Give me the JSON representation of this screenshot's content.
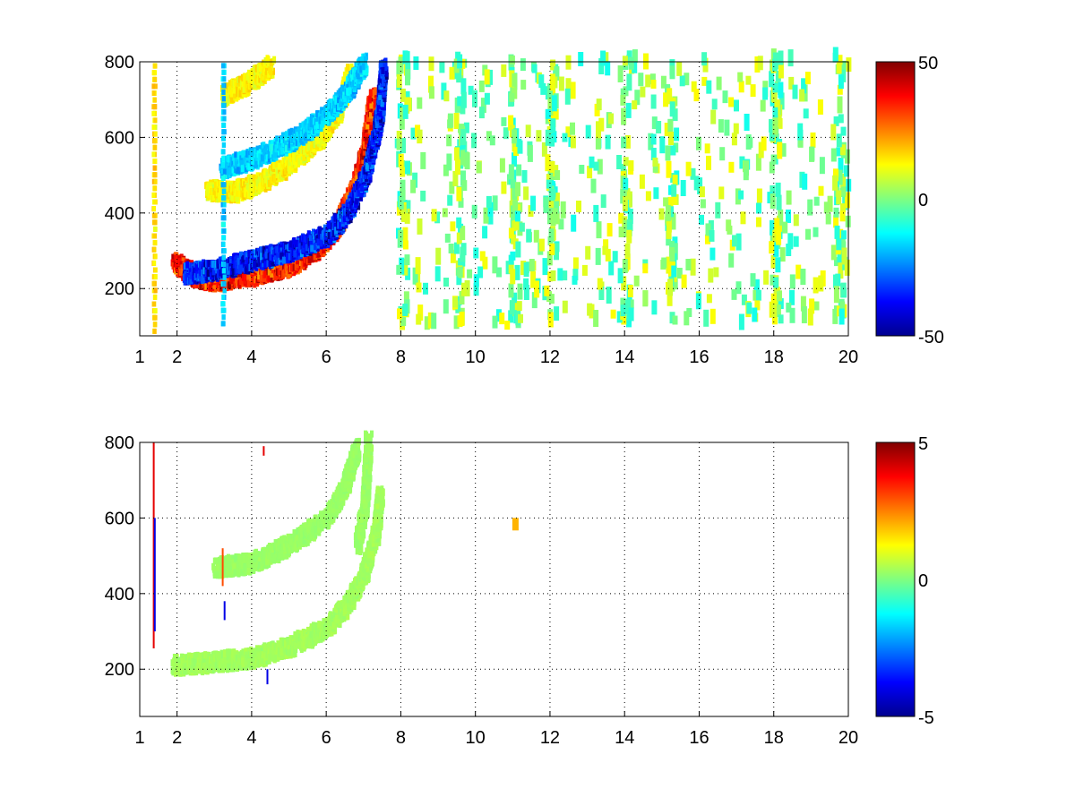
{
  "chart_data": [
    {
      "type": "heatmap",
      "title": "",
      "xlabel": "",
      "ylabel": "",
      "xlim": [
        1,
        20
      ],
      "ylim": [
        75,
        800
      ],
      "xticks": [
        1,
        2,
        4,
        6,
        8,
        10,
        12,
        14,
        16,
        18,
        20
      ],
      "yticks": [
        200,
        400,
        600,
        800
      ],
      "grid": true,
      "colormap": "jet",
      "clim": [
        -50,
        50
      ],
      "colorbar_ticks": [
        -50,
        0,
        50
      ],
      "colorbar_position": "right",
      "features": [
        {
          "name": "strong arc",
          "points": [
            [
              1.9,
              260
            ],
            [
              2.5,
              220
            ],
            [
              3,
              210
            ],
            [
              4,
              225
            ],
            [
              5,
              250
            ],
            [
              5.8,
              300
            ],
            [
              6.3,
              360
            ],
            [
              6.7,
              450
            ],
            [
              7,
              550
            ],
            [
              7.2,
              700
            ]
          ],
          "value": 40
        },
        {
          "name": "strong arc",
          "points": [
            [
              2.2,
              230
            ],
            [
              3,
              240
            ],
            [
              4,
              265
            ],
            [
              5,
              290
            ],
            [
              6,
              330
            ],
            [
              6.6,
              400
            ],
            [
              7,
              480
            ],
            [
              7.2,
              560
            ],
            [
              7.4,
              650
            ],
            [
              7.5,
              780
            ]
          ],
          "value": -42
        },
        {
          "name": "upper arc",
          "points": [
            [
              2.8,
              450
            ],
            [
              3.5,
              445
            ],
            [
              4.2,
              470
            ],
            [
              5,
              520
            ],
            [
              5.8,
              590
            ],
            [
              6.3,
              660
            ],
            [
              6.6,
              760
            ]
          ],
          "value": 15
        },
        {
          "name": "upper arc",
          "points": [
            [
              3.2,
              510
            ],
            [
              4.2,
              540
            ],
            [
              5.2,
              590
            ],
            [
              6,
              650
            ],
            [
              6.6,
              720
            ],
            [
              7,
              790
            ]
          ],
          "value": -20
        },
        {
          "name": "top arc",
          "points": [
            [
              3.2,
              700
            ],
            [
              3.8,
              730
            ],
            [
              4.5,
              780
            ]
          ],
          "value": 15
        },
        {
          "name": "vertical streak",
          "points": [
            [
              1.35,
              80
            ],
            [
              1.35,
              800
            ]
          ],
          "value": 18
        },
        {
          "name": "vertical streak",
          "points": [
            [
              3.2,
              100
            ],
            [
              3.2,
              800
            ]
          ],
          "value": -20
        }
      ],
      "noise": {
        "x_range": [
          7.8,
          20
        ],
        "y_range": [
          90,
          800
        ],
        "values": [
          -8,
          0,
          10
        ],
        "density": "sparse",
        "columns": [
          8,
          9.5,
          11,
          12,
          14,
          15.2,
          18,
          19.7
        ]
      }
    },
    {
      "type": "heatmap",
      "title": "",
      "xlabel": "",
      "ylabel": "",
      "xlim": [
        1,
        20
      ],
      "ylim": [
        75,
        800
      ],
      "xticks": [
        1,
        2,
        4,
        6,
        8,
        10,
        12,
        14,
        16,
        18,
        20
      ],
      "yticks": [
        200,
        400,
        600,
        800
      ],
      "grid": true,
      "colormap": "jet",
      "clim": [
        -5,
        5
      ],
      "colorbar_ticks": [
        -5,
        0,
        5
      ],
      "colorbar_position": "right",
      "features": [
        {
          "name": "band",
          "points": [
            [
              1.9,
              200
            ],
            [
              3,
              210
            ],
            [
              4,
              220
            ],
            [
              5,
              250
            ],
            [
              6,
              300
            ],
            [
              6.6,
              370
            ],
            [
              7,
              450
            ],
            [
              7.3,
              550
            ],
            [
              7.4,
              650
            ]
          ],
          "value": 0.4
        },
        {
          "name": "band",
          "points": [
            [
              3,
              460
            ],
            [
              4,
              470
            ],
            [
              5,
              520
            ],
            [
              6,
              590
            ],
            [
              6.5,
              680
            ],
            [
              6.8,
              780
            ]
          ],
          "value": 0.3
        },
        {
          "name": "band",
          "points": [
            [
              6.8,
              520
            ],
            [
              7,
              620
            ],
            [
              7.1,
              800
            ]
          ],
          "value": 0.3
        }
      ],
      "spikes": [
        {
          "x": 1.35,
          "y": [
            255,
            800
          ],
          "value": 4
        },
        {
          "x": 1.38,
          "y": [
            300,
            600
          ],
          "value": -4
        },
        {
          "x": 3.2,
          "y": [
            420,
            520
          ],
          "value": 3
        },
        {
          "x": 3.25,
          "y": [
            330,
            380
          ],
          "value": -4
        },
        {
          "x": 4.4,
          "y": [
            160,
            200
          ],
          "value": -4
        },
        {
          "x": 4.3,
          "y": [
            765,
            790
          ],
          "value": 4
        }
      ],
      "blobs": [
        {
          "x": 11.05,
          "y": 575,
          "value": 2
        }
      ]
    }
  ]
}
